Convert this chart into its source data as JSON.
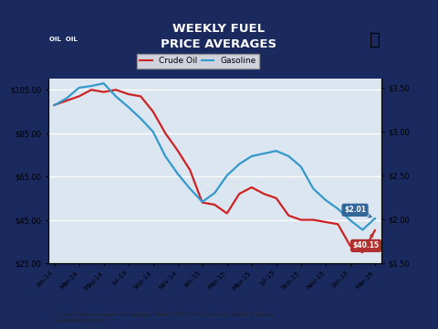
{
  "title": "WEEKLY FUEL\nPRICE AVERAGES",
  "subtitle": "*Prices based on weekly averages per barrel of WTI crude oil and per gallon of regular\nunleaded gasoline.",
  "x_labels": [
    "Jan-14",
    "Mar-14",
    "May-14",
    "Jul-14",
    "Sep-14",
    "Nov-14",
    "Jan-15",
    "Mar-15",
    "May-15",
    "Jul-15",
    "Sep-15",
    "Nov-15",
    "Jan-16",
    "Mar-16"
  ],
  "crude_monthly": [
    98,
    100,
    102,
    105,
    104,
    105,
    103,
    102,
    95,
    85,
    77,
    68,
    53,
    52,
    48,
    57,
    60,
    57,
    55,
    47,
    45,
    45,
    44,
    43,
    33,
    30,
    40.15
  ],
  "gasoline_monthly": [
    3.3,
    3.38,
    3.5,
    3.52,
    3.55,
    3.4,
    3.28,
    3.15,
    3.0,
    2.72,
    2.52,
    2.35,
    2.2,
    2.3,
    2.5,
    2.63,
    2.72,
    2.75,
    2.78,
    2.72,
    2.6,
    2.35,
    2.22,
    2.12,
    1.99,
    1.88,
    2.01
  ],
  "crude_color": "#cc2222",
  "gasoline_color": "#3399cc",
  "background_header": "#1a2a5e",
  "background_plot": "#dce6f1",
  "title_bg_color": "#b03030",
  "title_text_color": "#ffffff",
  "left_ylim": [
    25,
    110
  ],
  "right_ylim": [
    1.5,
    3.6
  ],
  "left_yticks": [
    25,
    45,
    65,
    85,
    105
  ],
  "right_yticks": [
    1.5,
    2.0,
    2.5,
    3.0,
    3.5
  ],
  "final_crude": 40.15,
  "final_gasoline": 2.01,
  "annotation_crude_color": "#b03030",
  "annotation_gas_color": "#336699",
  "tick_positions": [
    0,
    2,
    4,
    6,
    8,
    10,
    12,
    14,
    16,
    18,
    20,
    22,
    24,
    26
  ]
}
